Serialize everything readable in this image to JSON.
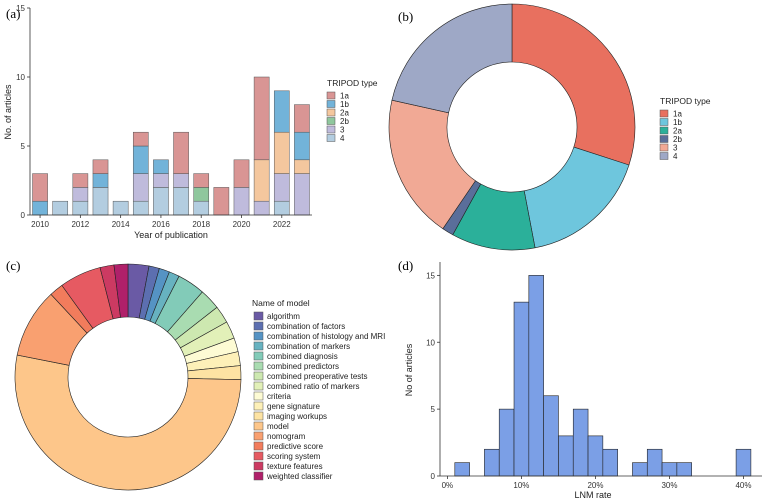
{
  "panels": {
    "a": "(a)",
    "b": "(b)",
    "c": "(c)",
    "d": "(d)"
  },
  "colors": {
    "1a": "#d99594",
    "1b": "#72b3d9",
    "2a": "#f4c79e",
    "2b": "#8fc79d",
    "3": "#bfbbdc",
    "4": "#b3cde0",
    "donut_1a": "#e8705f",
    "donut_1b": "#6ec6dd",
    "donut_2a": "#2bb09a",
    "donut_2b": "#5a6e9a",
    "donut_3": "#f1a995",
    "donut_4": "#9ea8c6",
    "hist": "#7b9fe6"
  },
  "chart_data": [
    {
      "id": "a",
      "type": "bar",
      "stacked": true,
      "title": "",
      "xlabel": "Year of publication",
      "ylabel": "No. of articles",
      "ylim": [
        0,
        15
      ],
      "yticks": [
        0,
        5,
        10,
        15
      ],
      "xticks": [
        "2010",
        "2012",
        "2014",
        "2016",
        "2018",
        "2020",
        "2022"
      ],
      "legend_title": "TRIPOD type",
      "legend_position": "right",
      "categories": [
        2010,
        2011,
        2012,
        2013,
        2014,
        2015,
        2016,
        2017,
        2018,
        2019,
        2020,
        2021,
        2022,
        2023
      ],
      "series": [
        {
          "name": "4",
          "values": [
            0,
            1,
            1,
            2,
            1,
            1,
            2,
            2,
            1,
            0,
            0,
            0,
            1,
            0
          ]
        },
        {
          "name": "3",
          "values": [
            0,
            0,
            1,
            0,
            0,
            2,
            1,
            1,
            0,
            0,
            2,
            1,
            2,
            3
          ]
        },
        {
          "name": "2b",
          "values": [
            0,
            0,
            0,
            0,
            0,
            0,
            0,
            0,
            1,
            0,
            0,
            0,
            0,
            0
          ]
        },
        {
          "name": "2a",
          "values": [
            0,
            0,
            0,
            0,
            0,
            0,
            0,
            0,
            0,
            0,
            0,
            3,
            3,
            1
          ]
        },
        {
          "name": "1b",
          "values": [
            1,
            0,
            0,
            1,
            0,
            2,
            1,
            0,
            0,
            0,
            0,
            0,
            3,
            2
          ]
        },
        {
          "name": "1a",
          "values": [
            2,
            0,
            1,
            1,
            0,
            1,
            0,
            3,
            1,
            2,
            2,
            6,
            0,
            2
          ]
        }
      ]
    },
    {
      "id": "b",
      "type": "pie",
      "donut": true,
      "legend_title": "TRIPOD type",
      "legend_position": "right",
      "categories": [
        "1a",
        "1b",
        "2a",
        "2b",
        "3",
        "4"
      ],
      "values": [
        30,
        17,
        11,
        1.5,
        19,
        21.5
      ]
    },
    {
      "id": "c",
      "type": "pie",
      "donut": true,
      "legend_title": "Name of model",
      "legend_position": "right",
      "categories": [
        "algorithm",
        "combination of factors",
        "combination of histology and MRI",
        "combination of markers",
        "combined diagnosis",
        "combined predictors",
        "combined preoperative tests",
        "combined ratio of markers",
        "criteria",
        "gene signature",
        "imaging workups",
        "model",
        "nomogram",
        "predictive score",
        "scoring system",
        "texture features",
        "weighted classifier"
      ],
      "values": [
        3,
        1.5,
        1.5,
        1.5,
        4,
        3,
        2.5,
        2.5,
        2,
        2,
        2,
        53,
        10,
        2,
        6,
        2,
        2
      ],
      "colors": [
        "#6a5aa5",
        "#5c6fb0",
        "#5593c4",
        "#67b2c0",
        "#82cbb8",
        "#a9dcb1",
        "#cde8b0",
        "#e2f0b8",
        "#fdfbd4",
        "#fdf0b8",
        "#fde3a3",
        "#fdc68a",
        "#f9a070",
        "#f27c5c",
        "#e65a62",
        "#cc3a62",
        "#b0206a"
      ]
    },
    {
      "id": "d",
      "type": "bar",
      "histogram": true,
      "title": "",
      "xlabel": "LNM rate",
      "ylabel": "No of articles",
      "xlim": [
        -0.01,
        0.425
      ],
      "ylim": [
        0,
        16
      ],
      "yticks": [
        0,
        5,
        10,
        15
      ],
      "xticks": [
        0,
        0.1,
        0.2,
        0.3,
        0.4
      ],
      "xtick_labels": [
        "0%",
        "10%",
        "20%",
        "30%",
        "40%"
      ],
      "bin_width": 0.02,
      "bin_starts": [
        0.01,
        0.05,
        0.07,
        0.09,
        0.11,
        0.13,
        0.15,
        0.17,
        0.19,
        0.21,
        0.25,
        0.27,
        0.29,
        0.31,
        0.39
      ],
      "values": [
        1,
        2,
        5,
        13,
        15,
        6,
        3,
        5,
        3,
        2,
        1,
        2,
        1,
        1,
        2
      ]
    }
  ]
}
